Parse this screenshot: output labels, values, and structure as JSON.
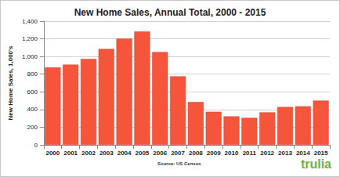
{
  "chart_data": {
    "type": "bar",
    "title": "New Home Sales, Annual Total, 2000 - 2015",
    "y_label": "New Home Sales, 1,000's",
    "categories": [
      "2000",
      "2001",
      "2002",
      "2003",
      "2004",
      "2005",
      "2006",
      "2007",
      "2008",
      "2009",
      "2010",
      "2011",
      "2012",
      "2013",
      "2014",
      "2015"
    ],
    "values": [
      877,
      908,
      973,
      1086,
      1203,
      1283,
      1051,
      776,
      485,
      375,
      323,
      306,
      368,
      429,
      437,
      501
    ],
    "color": "#f4553b",
    "ylim": [
      0,
      1400
    ],
    "yticks": [
      0,
      200,
      400,
      600,
      800,
      {
        "value": 1000,
        "label": "1,000"
      },
      {
        "value": 1200,
        "label": "1,200"
      },
      {
        "value": 1400,
        "label": "1,400"
      }
    ],
    "grid": true,
    "annotations": [
      "Source: US Census",
      "trulia"
    ]
  }
}
